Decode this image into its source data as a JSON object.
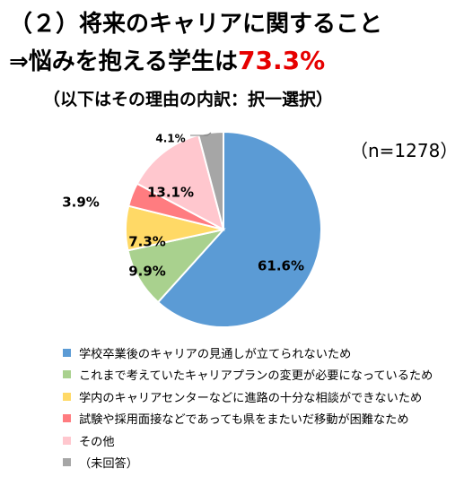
{
  "header": {
    "title_line1": "（２）将来のキャリアに関すること",
    "title_line2_prefix": "⇒悩みを抱える学生は",
    "title_line2_highlight": "73.3%",
    "subtitle": "（以下はその理由の内訳：択一選択）",
    "sample_size": "（n=1278）"
  },
  "chart_data": {
    "type": "pie",
    "title": "",
    "start_angle_deg": 0,
    "direction": "clockwise",
    "slices": [
      {
        "label": "学校卒業後のキャリアの見通しが立てられないため",
        "value": 61.6,
        "display": "61.6%",
        "color": "#5b9bd5"
      },
      {
        "label": "これまで考えていたキャリアプランの変更が必要になっているため",
        "value": 9.9,
        "display": "9.9%",
        "color": "#a9d18e"
      },
      {
        "label": "学内のキャリアセンターなどに進路の十分な相談ができないため",
        "value": 7.3,
        "display": "7.3%",
        "color": "#ffd966"
      },
      {
        "label": "試験や採用面接などであっても県をまたいだ移動が困難なため",
        "value": 3.9,
        "display": "3.9%",
        "color": "#ff7c80"
      },
      {
        "label": "その他",
        "value": 13.1,
        "display": "13.1%",
        "color": "#ffc7ce"
      },
      {
        "label": "（未回答）",
        "value": 4.1,
        "display": "4.1%",
        "color": "#a6a6a6"
      }
    ],
    "legend_position": "bottom"
  }
}
